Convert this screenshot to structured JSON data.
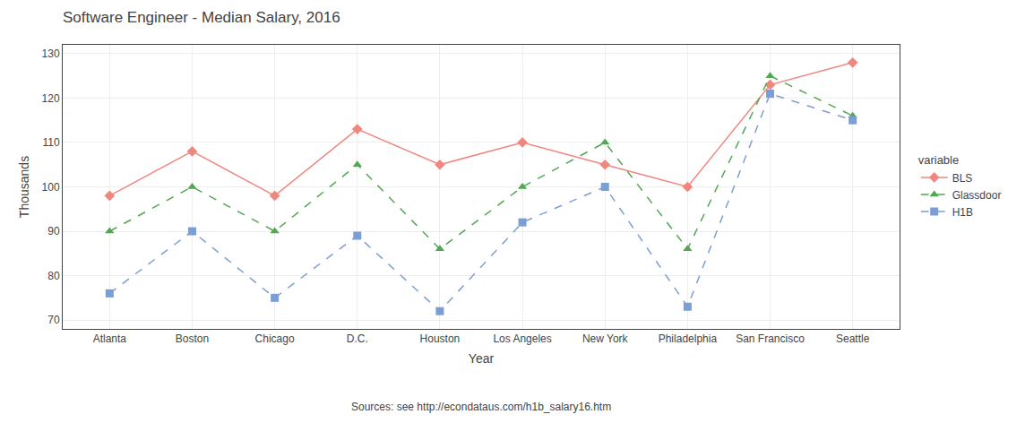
{
  "chart_data": {
    "type": "line",
    "title": "Software Engineer - Median Salary, 2016",
    "xlabel": "Year",
    "ylabel": "Thousands",
    "annotations": [
      "Sources: see http://econdataus.com/h1b_salary16.htm"
    ],
    "legend_title": "variable",
    "categories": [
      "Atlanta",
      "Boston",
      "Chicago",
      "D.C.",
      "Houston",
      "Los Angeles",
      "New York",
      "Philadelphia",
      "San Francisco",
      "Seattle"
    ],
    "series": [
      {
        "name": "BLS",
        "color": "#f0877f",
        "marker": "diamond",
        "line_style": "solid",
        "values": [
          98,
          108,
          98,
          113,
          105,
          110,
          105,
          100,
          123,
          128
        ]
      },
      {
        "name": "Glassdoor",
        "color": "#53a653",
        "marker": "triangle-up",
        "line_style": "dash",
        "values": [
          90,
          100,
          90,
          105,
          86,
          100,
          110,
          86,
          125,
          116
        ]
      },
      {
        "name": "H1B",
        "color": "#7b9fd4",
        "marker": "square",
        "line_style": "dash",
        "values": [
          76,
          90,
          75,
          89,
          72,
          92,
          100,
          73,
          121,
          115
        ]
      }
    ],
    "ylim": [
      68,
      132
    ],
    "yticks": [
      70,
      80,
      90,
      100,
      110,
      120,
      130
    ],
    "grid": true,
    "legend": "right"
  }
}
